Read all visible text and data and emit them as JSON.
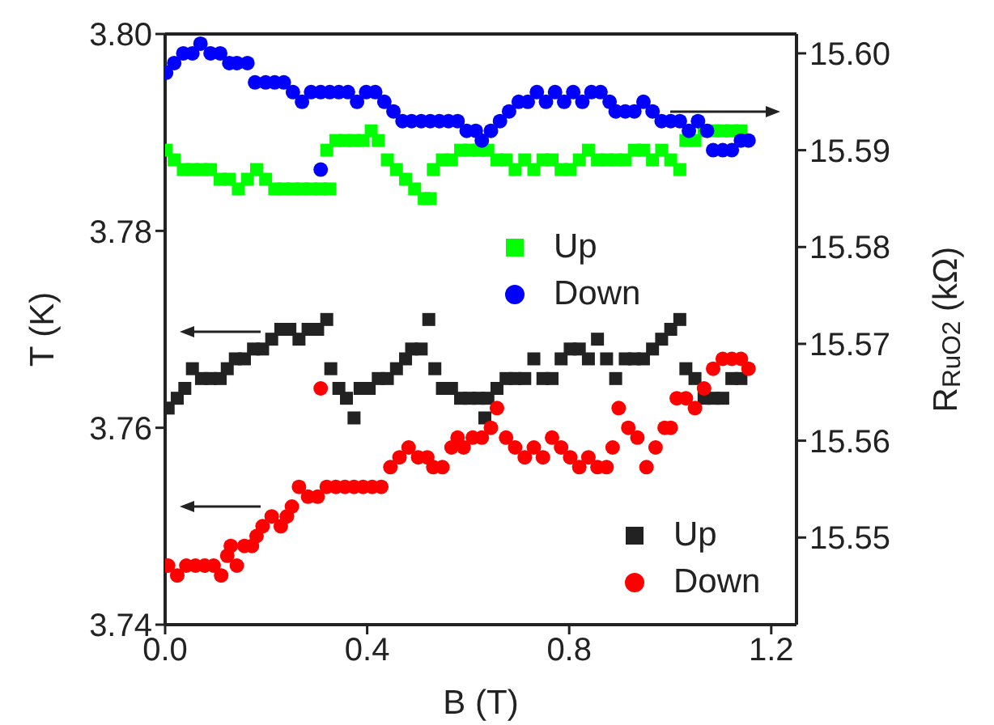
{
  "chart_data": {
    "type": "scatter",
    "xlabel": "B (T)",
    "ylabel": "T (K)",
    "y2label": "R$_{RuO2}$ (kΩ)",
    "xlim": [
      0,
      1.25
    ],
    "xticks": [
      {
        "value": 0,
        "label": "0.0"
      },
      {
        "value": 0.4,
        "label": "0.4"
      },
      {
        "value": 0.8,
        "label": "0.8"
      },
      {
        "value": 1.2,
        "label": "1.2"
      }
    ],
    "ylim": [
      3.74,
      3.8
    ],
    "yticks": [
      3.74,
      3.76,
      3.78,
      {
        "value": 3.8,
        "label": "3.80"
      }
    ],
    "y2lim": [
      15.541,
      15.602
    ],
    "y2ticks": [
      15.55,
      15.56,
      15.57,
      15.58,
      15.59,
      {
        "value": 15.6,
        "label": "15.60"
      }
    ],
    "legend": "bottom right",
    "series": [
      {
        "name": "Up",
        "color": "#00ff00",
        "marker": "square",
        "axis": "y2",
        "x": [
          0.002,
          0.018,
          0.036,
          0.054,
          0.072,
          0.09,
          0.109,
          0.127,
          0.145,
          0.163,
          0.181,
          0.199,
          0.217,
          0.235,
          0.253,
          0.271,
          0.289,
          0.308,
          0.326,
          0.32,
          0.338,
          0.356,
          0.374,
          0.392,
          0.408,
          0.422,
          0.44,
          0.458,
          0.476,
          0.494,
          0.513,
          0.525,
          0.531,
          0.549,
          0.567,
          0.585,
          0.603,
          0.621,
          0.639,
          0.657,
          0.675,
          0.693,
          0.712,
          0.73,
          0.748,
          0.766,
          0.784,
          0.802,
          0.82,
          0.838,
          0.856,
          0.874,
          0.892,
          0.911,
          0.929,
          0.947,
          0.965,
          0.983,
          1.001,
          1.019,
          1.031,
          1.049,
          1.067,
          1.085,
          1.104,
          1.122,
          1.14
        ],
        "values": [
          15.59,
          15.589,
          15.588,
          15.588,
          15.588,
          15.588,
          15.587,
          15.587,
          15.586,
          15.587,
          15.588,
          15.587,
          15.586,
          15.586,
          15.586,
          15.586,
          15.586,
          15.586,
          15.586,
          15.59,
          15.591,
          15.591,
          15.591,
          15.591,
          15.592,
          15.591,
          15.589,
          15.588,
          15.587,
          15.586,
          15.585,
          15.585,
          15.588,
          15.589,
          15.589,
          15.59,
          15.59,
          15.59,
          15.59,
          15.589,
          15.589,
          15.588,
          15.589,
          15.588,
          15.589,
          15.589,
          15.588,
          15.588,
          15.589,
          15.59,
          15.589,
          15.589,
          15.589,
          15.589,
          15.59,
          15.59,
          15.589,
          15.59,
          15.589,
          15.588,
          15.591,
          15.591,
          15.592,
          15.592,
          15.592,
          15.592,
          15.592
        ]
      },
      {
        "name": "Down",
        "color": "#0000ff",
        "marker": "circle",
        "axis": "y2",
        "x": [
          0.002,
          0.018,
          0.036,
          0.054,
          0.07,
          0.09,
          0.109,
          0.127,
          0.142,
          0.163,
          0.178,
          0.199,
          0.217,
          0.235,
          0.253,
          0.271,
          0.289,
          0.308,
          0.326,
          0.344,
          0.362,
          0.38,
          0.398,
          0.416,
          0.434,
          0.452,
          0.47,
          0.488,
          0.507,
          0.525,
          0.543,
          0.561,
          0.579,
          0.597,
          0.615,
          0.627,
          0.645,
          0.663,
          0.681,
          0.7,
          0.718,
          0.736,
          0.754,
          0.772,
          0.79,
          0.808,
          0.826,
          0.844,
          0.862,
          0.88,
          0.892,
          0.911,
          0.929,
          0.947,
          0.965,
          0.983,
          1.001,
          1.019,
          1.037,
          1.055,
          1.073,
          1.085,
          1.104,
          1.122,
          1.14,
          1.155,
          0.308
        ],
        "values": [
          15.598,
          15.599,
          15.6,
          15.6,
          15.601,
          15.6,
          15.6,
          15.599,
          15.599,
          15.599,
          15.597,
          15.597,
          15.597,
          15.597,
          15.596,
          15.595,
          15.596,
          15.596,
          15.596,
          15.596,
          15.596,
          15.595,
          15.596,
          15.596,
          15.595,
          15.594,
          15.593,
          15.593,
          15.593,
          15.593,
          15.593,
          15.593,
          15.593,
          15.592,
          15.592,
          15.591,
          15.592,
          15.593,
          15.594,
          15.595,
          15.595,
          15.596,
          15.595,
          15.596,
          15.595,
          15.596,
          15.595,
          15.596,
          15.596,
          15.595,
          15.594,
          15.594,
          15.594,
          15.595,
          15.594,
          15.593,
          15.593,
          15.593,
          15.592,
          15.593,
          15.592,
          15.59,
          15.59,
          15.59,
          15.591,
          15.591,
          15.588
        ]
      },
      {
        "name": "Up",
        "color": "#222222",
        "marker": "square",
        "x": [
          0.006,
          0.024,
          0.039,
          0.054,
          0.072,
          0.09,
          0.109,
          0.123,
          0.139,
          0.157,
          0.175,
          0.193,
          0.211,
          0.229,
          0.247,
          0.265,
          0.283,
          0.302,
          0.32,
          0.328,
          0.344,
          0.359,
          0.374,
          0.386,
          0.404,
          0.422,
          0.44,
          0.458,
          0.476,
          0.488,
          0.507,
          0.522,
          0.534,
          0.549,
          0.567,
          0.585,
          0.603,
          0.621,
          0.633,
          0.639,
          0.657,
          0.675,
          0.693,
          0.712,
          0.73,
          0.748,
          0.766,
          0.784,
          0.802,
          0.82,
          0.838,
          0.856,
          0.874,
          0.892,
          0.911,
          0.929,
          0.947,
          0.965,
          0.983,
          1.001,
          1.019,
          1.031,
          1.049,
          1.067,
          1.085,
          1.104,
          1.122,
          1.14
        ],
        "values": [
          3.762,
          3.763,
          3.764,
          3.766,
          3.765,
          3.765,
          3.765,
          3.766,
          3.767,
          3.767,
          3.768,
          3.768,
          3.769,
          3.77,
          3.77,
          3.769,
          3.77,
          3.77,
          3.771,
          3.766,
          3.764,
          3.763,
          3.761,
          3.764,
          3.764,
          3.765,
          3.765,
          3.766,
          3.767,
          3.768,
          3.768,
          3.771,
          3.766,
          3.764,
          3.764,
          3.763,
          3.763,
          3.763,
          3.761,
          3.763,
          3.764,
          3.765,
          3.765,
          3.765,
          3.767,
          3.765,
          3.765,
          3.767,
          3.768,
          3.768,
          3.767,
          3.769,
          3.767,
          3.765,
          3.767,
          3.767,
          3.767,
          3.768,
          3.769,
          3.77,
          3.771,
          3.766,
          3.765,
          3.763,
          3.763,
          3.763,
          3.765,
          3.765
        ]
      },
      {
        "name": "Down",
        "color": "#ff0000",
        "marker": "circle",
        "x": [
          0.006,
          0.024,
          0.042,
          0.06,
          0.078,
          0.096,
          0.111,
          0.123,
          0.13,
          0.142,
          0.157,
          0.172,
          0.181,
          0.193,
          0.211,
          0.229,
          0.241,
          0.251,
          0.265,
          0.283,
          0.302,
          0.308,
          0.32,
          0.338,
          0.356,
          0.374,
          0.392,
          0.41,
          0.428,
          0.446,
          0.464,
          0.482,
          0.501,
          0.519,
          0.531,
          0.549,
          0.567,
          0.579,
          0.591,
          0.609,
          0.627,
          0.645,
          0.657,
          0.675,
          0.693,
          0.712,
          0.73,
          0.748,
          0.766,
          0.784,
          0.802,
          0.82,
          0.838,
          0.856,
          0.874,
          0.886,
          0.898,
          0.917,
          0.935,
          0.953,
          0.971,
          0.989,
          1.001,
          1.013,
          1.031,
          1.049,
          1.067,
          1.085,
          1.104,
          1.122,
          1.14,
          1.155
        ],
        "values": [
          3.746,
          3.745,
          3.746,
          3.746,
          3.746,
          3.746,
          3.745,
          3.747,
          3.748,
          3.746,
          3.748,
          3.748,
          3.749,
          3.75,
          3.751,
          3.75,
          3.751,
          3.752,
          3.754,
          3.753,
          3.753,
          3.764,
          3.754,
          3.754,
          3.754,
          3.754,
          3.754,
          3.754,
          3.754,
          3.756,
          3.757,
          3.758,
          3.757,
          3.757,
          3.756,
          3.756,
          3.758,
          3.759,
          3.758,
          3.759,
          3.759,
          3.76,
          3.762,
          3.759,
          3.758,
          3.757,
          3.758,
          3.757,
          3.759,
          3.758,
          3.757,
          3.756,
          3.757,
          3.756,
          3.756,
          3.758,
          3.762,
          3.76,
          3.759,
          3.756,
          3.758,
          3.76,
          3.76,
          3.763,
          3.763,
          3.762,
          3.764,
          3.766,
          3.767,
          3.767,
          3.767,
          3.766
        ]
      }
    ]
  }
}
